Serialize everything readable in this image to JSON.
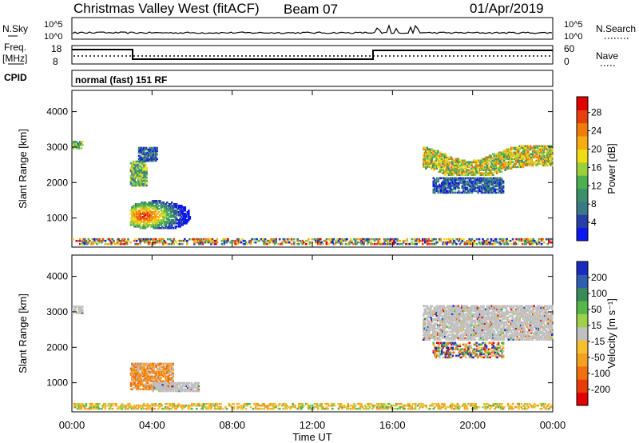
{
  "header": {
    "title": "Christmas Valley West (fitACF)",
    "beam": "Beam 07",
    "date": "01/Apr/2019"
  },
  "top_panels": {
    "nsky_label": "N.Sky",
    "nsearch_label": "N.Search",
    "nsky_ticks": [
      "10^5",
      "10^0"
    ],
    "nsearch_ticks": [
      "10^5",
      "10^0"
    ],
    "freq_label": "Freq.",
    "freq_unit": "[MHz]",
    "freq_ticks": [
      "18",
      "8"
    ],
    "nave_label": "Nave",
    "nave_ticks": [
      "60",
      "0"
    ],
    "cpid_label": "CPID",
    "cpid_text": "normal (fast) 151 RF"
  },
  "chart_data": [
    {
      "type": "heatmap",
      "name": "power",
      "ylabel": "Slant Range [km]",
      "ylim": [
        180,
        4600
      ],
      "yticks": [
        1000,
        2000,
        3000,
        4000
      ],
      "xlim": [
        0,
        24
      ],
      "colorbar": {
        "label": "Power [dB]",
        "ticks": [
          "4",
          "8",
          "12",
          "16",
          "20",
          "24",
          "28"
        ],
        "colors": [
          "#0b16f0",
          "#263ea6",
          "#3a7a84",
          "#3d8f6a",
          "#4caf50",
          "#9bcf3c",
          "#f0dc16",
          "#f6ad14",
          "#f07c0c",
          "#e6410a",
          "#e00000"
        ]
      },
      "regions": [
        {
          "t": [
            0.0,
            0.5
          ],
          "r": [
            2950,
            3150
          ],
          "level": "mid"
        },
        {
          "t": [
            2.9,
            6.3
          ],
          "r": [
            700,
            1550
          ],
          "level": "high"
        },
        {
          "t": [
            2.9,
            3.7
          ],
          "r": [
            1900,
            2600
          ],
          "level": "mid"
        },
        {
          "t": [
            3.3,
            4.2
          ],
          "r": [
            2600,
            3000
          ],
          "level": "low"
        },
        {
          "t": [
            0.0,
            24.0
          ],
          "r": [
            250,
            420
          ],
          "level": "mixed"
        },
        {
          "t": [
            17.5,
            24.0
          ],
          "r": [
            2200,
            3150
          ],
          "level": "mid-high"
        },
        {
          "t": [
            18.0,
            21.5
          ],
          "r": [
            1700,
            2150
          ],
          "level": "low"
        }
      ]
    },
    {
      "type": "heatmap",
      "name": "velocity",
      "ylabel": "Slant Range [km]",
      "ylim": [
        180,
        4600
      ],
      "yticks": [
        1000,
        2000,
        3000,
        4000
      ],
      "xlim": [
        0,
        24
      ],
      "colorbar": {
        "label": "Velocity [m s⁻¹]",
        "ticks": [
          "200",
          "100",
          "50",
          "15",
          "-15",
          "-50",
          "-100",
          "-200"
        ],
        "colors": [
          "#1a2bbf",
          "#2f5eb0",
          "#3a8a5a",
          "#54b848",
          "#9fd04a",
          "#c0c0c0",
          "#f8c030",
          "#f5a020",
          "#f07010",
          "#e83c0a",
          "#e00000"
        ]
      },
      "regions": [
        {
          "t": [
            0.0,
            0.5
          ],
          "r": [
            2950,
            3150
          ],
          "level": "ground"
        },
        {
          "t": [
            2.9,
            5.0
          ],
          "r": [
            800,
            1550
          ],
          "level": "negative"
        },
        {
          "t": [
            4.0,
            6.3
          ],
          "r": [
            750,
            1000
          ],
          "level": "ground"
        },
        {
          "t": [
            0.0,
            24.0
          ],
          "r": [
            250,
            420
          ],
          "level": "negative-low"
        },
        {
          "t": [
            17.5,
            24.0
          ],
          "r": [
            2200,
            3150
          ],
          "level": "ground"
        },
        {
          "t": [
            18.0,
            21.5
          ],
          "r": [
            1700,
            2150
          ],
          "level": "mixed"
        }
      ]
    }
  ],
  "time_axis": {
    "xlabel": "Time UT",
    "ticks": [
      "00:00",
      "04:00",
      "08:00",
      "12:00",
      "16:00",
      "20:00",
      "00:00"
    ]
  }
}
